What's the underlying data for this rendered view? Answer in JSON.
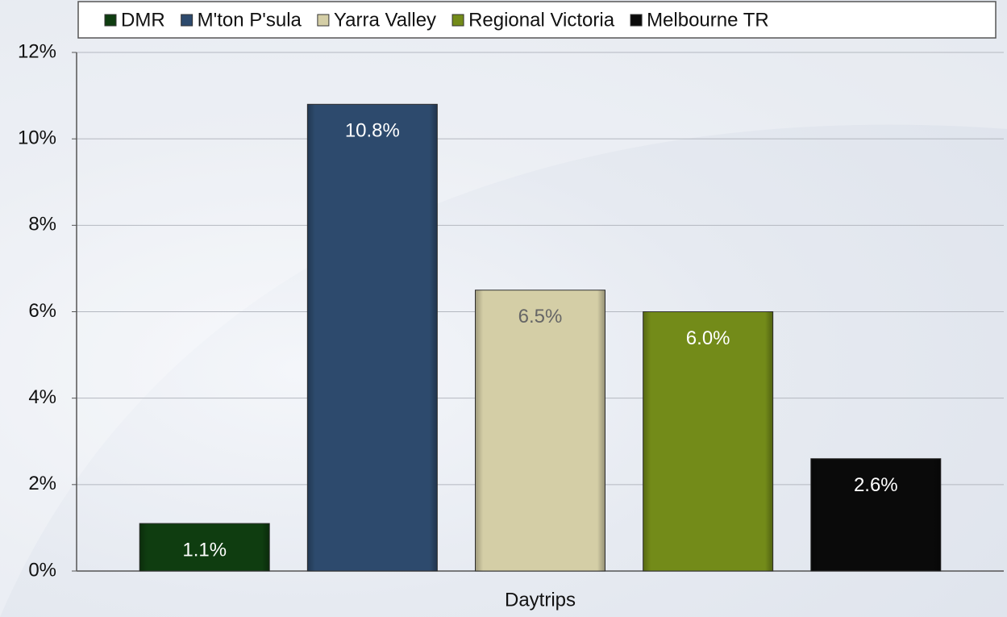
{
  "chart_data": {
    "type": "bar",
    "categories": [
      "Daytrips"
    ],
    "series": [
      {
        "name": "DMR",
        "color": "#0f3d10",
        "values": [
          1.1
        ],
        "value_labels": [
          "1.1%"
        ]
      },
      {
        "name": "M'ton P'sula",
        "color": "#2d4a6d",
        "values": [
          10.8
        ],
        "value_labels": [
          "10.8%"
        ]
      },
      {
        "name": "Yarra Valley",
        "color": "#d4cea6",
        "values": [
          6.5
        ],
        "value_labels": [
          "6.5%"
        ]
      },
      {
        "name": "Regional Victoria",
        "color": "#738b19",
        "values": [
          6.0
        ],
        "value_labels": [
          "6.0%"
        ]
      },
      {
        "name": "Melbourne TR",
        "color": "#0a0a0a",
        "values": [
          2.6
        ],
        "value_labels": [
          "2.6%"
        ]
      }
    ],
    "ylim": [
      0,
      12
    ],
    "yticks": [
      {
        "value": 0,
        "label": "0%"
      },
      {
        "value": 2,
        "label": "2%"
      },
      {
        "value": 4,
        "label": "4%"
      },
      {
        "value": 6,
        "label": "6%"
      },
      {
        "value": 8,
        "label": "8%"
      },
      {
        "value": 10,
        "label": "10%"
      },
      {
        "value": 12,
        "label": "12%"
      }
    ],
    "grid": true,
    "legend": "top"
  }
}
